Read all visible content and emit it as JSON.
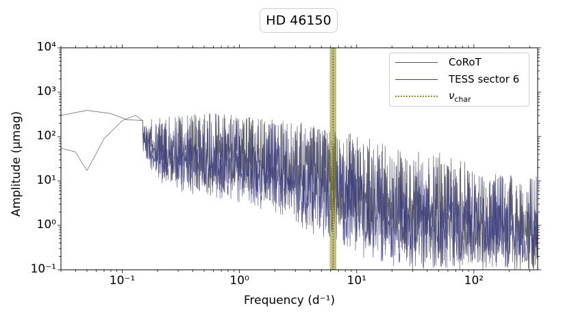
{
  "chart_data": {
    "type": "line",
    "title": "HD 46150",
    "xlabel": "Frequency (d⁻¹)",
    "ylabel": "Amplitude (μmag)",
    "xscale": "log",
    "yscale": "log",
    "xlim": [
      0.03,
      350
    ],
    "ylim": [
      0.1,
      10000
    ],
    "x_ticks": [
      {
        "value": 0.1,
        "label": "10⁻¹"
      },
      {
        "value": 1,
        "label": "10⁰"
      },
      {
        "value": 10,
        "label": "10¹"
      },
      {
        "value": 100,
        "label": "10²"
      }
    ],
    "y_ticks": [
      {
        "value": 0.1,
        "label": "10⁻¹"
      },
      {
        "value": 1,
        "label": "10⁰"
      },
      {
        "value": 10,
        "label": "10¹"
      },
      {
        "value": 100,
        "label": "10²"
      },
      {
        "value": 1000,
        "label": "10³"
      },
      {
        "value": 10000,
        "label": "10⁴"
      }
    ],
    "series": [
      {
        "name": "CoRoT",
        "color": "#555555",
        "envelope": {
          "x": [
            0.03,
            0.05,
            0.08,
            0.11,
            0.15,
            0.2,
            0.3,
            0.5,
            0.7,
            1.0,
            2.0,
            3.0,
            5.0,
            7.0,
            10,
            15,
            20,
            30,
            40,
            50,
            70,
            100,
            150,
            200,
            350
          ],
          "upper": [
            300,
            390,
            330,
            240,
            230,
            260,
            300,
            330,
            330,
            280,
            250,
            220,
            170,
            140,
            110,
            80,
            55,
            40,
            55,
            45,
            35,
            22,
            15,
            13,
            11
          ],
          "lower": [
            300,
            380,
            300,
            110,
            40,
            15,
            8,
            5,
            4,
            5,
            3,
            2,
            1,
            0.6,
            0.4,
            0.3,
            0.25,
            0.2,
            0.15,
            0.12,
            0.1,
            0.1,
            0.1,
            0.1,
            0.1
          ]
        }
      },
      {
        "name": "TESS sector 6",
        "color": "#3b3b87",
        "envelope": {
          "x": [
            0.03,
            0.04,
            0.05,
            0.07,
            0.1,
            0.13,
            0.16,
            0.2,
            0.3,
            0.5,
            0.7,
            1.0,
            2.0,
            3.0,
            5.0,
            7.0,
            10,
            15,
            20,
            30,
            50,
            100,
            200,
            350
          ],
          "upper": [
            55,
            45,
            17,
            90,
            230,
            300,
            200,
            200,
            320,
            380,
            330,
            300,
            240,
            200,
            150,
            110,
            80,
            50,
            40,
            30,
            22,
            16,
            14,
            13
          ],
          "lower": [
            55,
            40,
            16,
            80,
            200,
            290,
            30,
            10,
            6,
            4,
            4,
            3,
            2,
            1,
            0.5,
            0.3,
            0.2,
            0.15,
            0.12,
            0.1,
            0.1,
            0.1,
            0.1,
            0.1
          ]
        }
      }
    ],
    "vline": {
      "name": "ν_char",
      "label_main": "ν",
      "label_sub": "char",
      "x": 6.3,
      "band": [
        5.9,
        6.7
      ],
      "color": "#8c8c14"
    },
    "legend": {
      "position": "top-right",
      "entries": [
        "CoRoT",
        "TESS sector 6",
        "ν_char"
      ]
    }
  }
}
